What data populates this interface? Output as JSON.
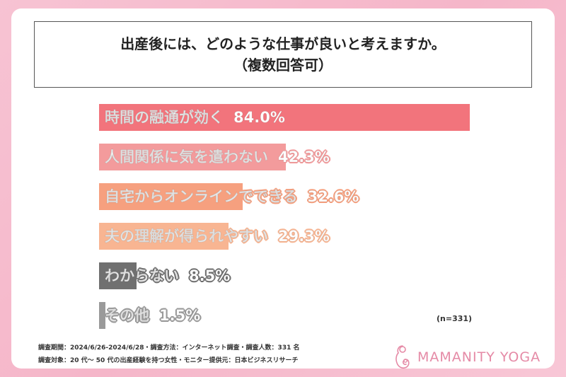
{
  "header": {
    "title_line1": "出産後には、どのような仕事が良いと考えますか。",
    "title_line2": "（複数回答可）"
  },
  "chart_data": {
    "type": "bar",
    "orientation": "horizontal",
    "categories": [
      "時間の融通が効く",
      "人間関係に気を遣わない",
      "自宅からオンラインでできる",
      "夫の理解が得られやすい",
      "わからない",
      "その他"
    ],
    "values": [
      84.0,
      42.3,
      32.6,
      29.3,
      8.5,
      1.5
    ],
    "value_labels": [
      "84.0%",
      "42.3%",
      "32.6%",
      "29.3%",
      "8.5%",
      "1.5%"
    ],
    "colors": [
      "#f2747c",
      "#f39b9c",
      "#f6a07f",
      "#f8b592",
      "#707070",
      "#9a9a9a"
    ],
    "xlim": [
      0,
      100
    ],
    "grid": false,
    "legend": "none",
    "sample_note": "(n=331)"
  },
  "footer": {
    "line1": "調査期間：2024/6/26-2024/6/28・調査方法：インターネット調査・調査人数：331 名",
    "line2": "調査対象：20 代～ 50 代の出産経験を持つ女性・モニター提供元：日本ビジネスリサーチ"
  },
  "brand": {
    "name": "MAMANITY YOGA",
    "color": "#e58aa6"
  }
}
